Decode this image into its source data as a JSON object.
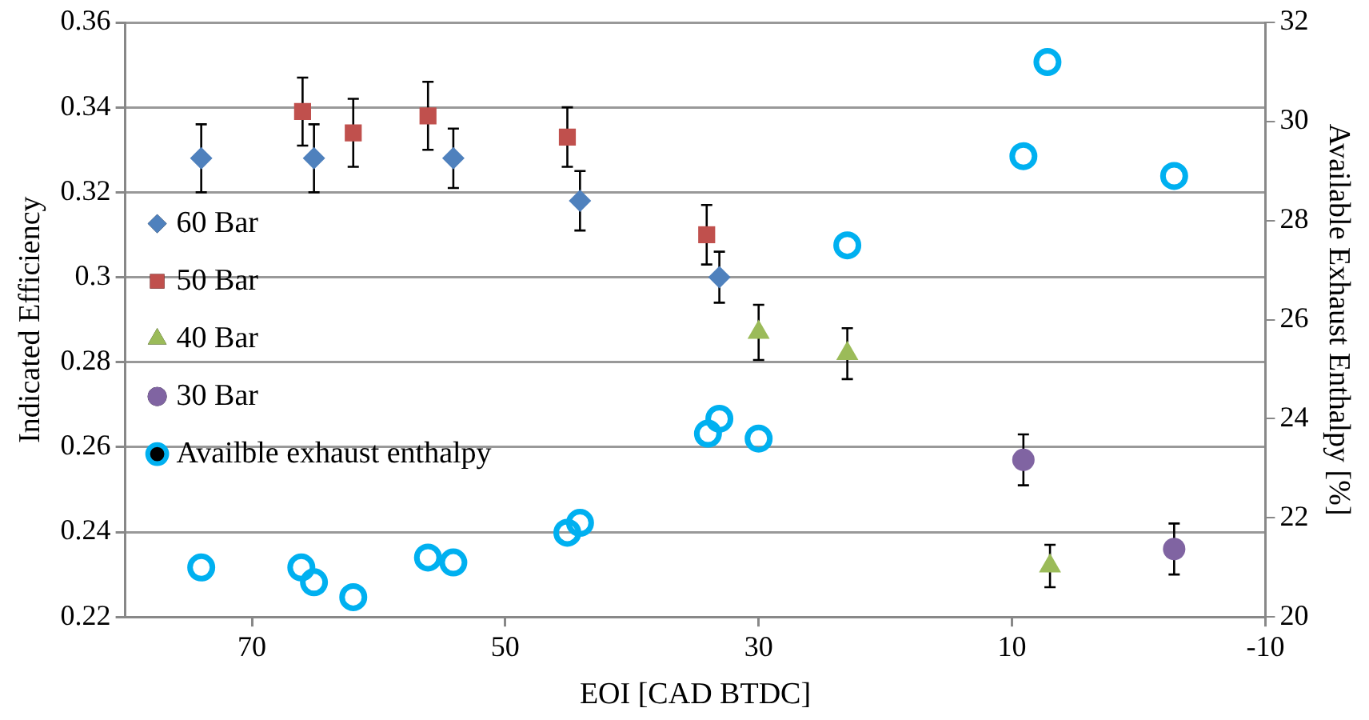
{
  "chart_data": {
    "type": "scatter",
    "xlabel": "EOI [CAD BTDC]",
    "ylabel": "Indicated Efficiency",
    "y2label": "Available Exhaust Enthalpy [%]",
    "xlim": [
      80,
      -10
    ],
    "xticks": [
      70,
      50,
      30,
      10,
      -10
    ],
    "ylim": [
      0.22,
      0.36
    ],
    "yticks": [
      0.22,
      0.24,
      0.26,
      0.28,
      0.3,
      0.32,
      0.34,
      0.36
    ],
    "y2lim": [
      20,
      32
    ],
    "y2ticks": [
      20,
      22,
      24,
      26,
      28,
      30,
      32
    ],
    "grid": "y",
    "legend": "left",
    "series": [
      {
        "name": "60 Bar",
        "color": "#4f81bd",
        "marker": "diamond",
        "x": [
          74,
          65.1,
          54.1,
          44.1,
          33.1
        ],
        "values": [
          0.328,
          0.328,
          0.328,
          0.318,
          0.3
        ],
        "errors": [
          0.008,
          0.008,
          0.007,
          0.007,
          0.006
        ]
      },
      {
        "name": "50 Bar",
        "color": "#c0504d",
        "marker": "square",
        "x": [
          66,
          62,
          56.1,
          45.1,
          34.1
        ],
        "values": [
          0.339,
          0.334,
          0.338,
          0.333,
          0.31
        ],
        "errors": [
          0.008,
          0.008,
          0.008,
          0.007,
          0.007
        ]
      },
      {
        "name": "40 Bar",
        "color": "#9bbb59",
        "marker": "triangle",
        "x": [
          30,
          23,
          7
        ],
        "values": [
          0.287,
          0.282,
          0.232
        ],
        "errors": [
          0.0065,
          0.006,
          0.005
        ]
      },
      {
        "name": "30 Bar",
        "color": "#8064a2",
        "marker": "circle",
        "x": [
          9.1,
          -2.8
        ],
        "values": [
          0.257,
          0.236
        ],
        "errors": [
          0.006,
          0.006
        ]
      },
      {
        "name": "Availble exhaust enthalpy",
        "color": "#00b0f0",
        "marker": "circle",
        "axis": "y2",
        "x": [
          74,
          66.1,
          65.1,
          62,
          56.1,
          54.1,
          45.1,
          44.1,
          34,
          33.1,
          30,
          23,
          9.1,
          7.2,
          -2.8
        ],
        "values": [
          21.0,
          21.0,
          20.7,
          20.4,
          21.2,
          21.1,
          21.7,
          21.9,
          23.7,
          24.0,
          23.6,
          27.5,
          29.3,
          31.2,
          28.9
        ]
      }
    ]
  }
}
